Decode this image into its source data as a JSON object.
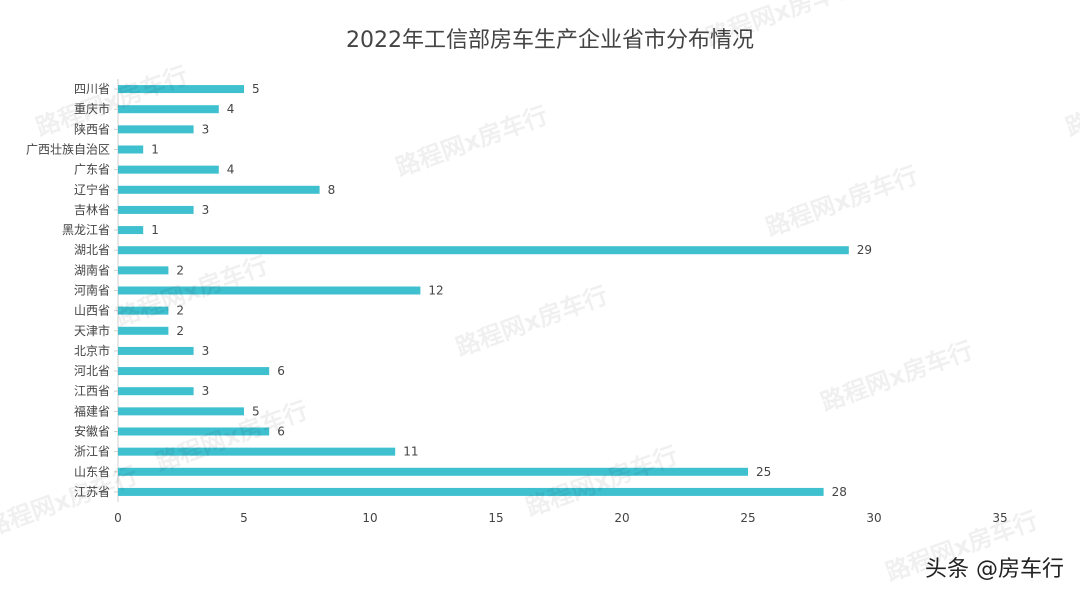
{
  "header": {
    "title": "2022年工信部房车生产企业省市分布情况"
  },
  "footer": {
    "credit": "头条 @房车行"
  },
  "watermark": {
    "text": "路程网x房车行"
  },
  "colors": {
    "bar": "#3ec0cf",
    "axis": "#cfcfcf",
    "label": "#444444"
  },
  "chart_data": {
    "type": "bar",
    "orientation": "horizontal",
    "title": "2022年工信部房车生产企业省市分布情况",
    "xlabel": "",
    "ylabel": "",
    "xlim": [
      0,
      35
    ],
    "xticks": [
      0,
      5,
      10,
      15,
      20,
      25,
      30,
      35
    ],
    "grid": false,
    "legend": "none",
    "categories": [
      "四川省",
      "重庆市",
      "陕西省",
      "广西壮族自治区",
      "广东省",
      "辽宁省",
      "吉林省",
      "黑龙江省",
      "湖北省",
      "湖南省",
      "河南省",
      "山西省",
      "天津市",
      "北京市",
      "河北省",
      "江西省",
      "福建省",
      "安徽省",
      "浙江省",
      "山东省",
      "江苏省"
    ],
    "values": [
      5,
      4,
      3,
      1,
      4,
      8,
      3,
      1,
      29,
      2,
      12,
      2,
      2,
      3,
      6,
      3,
      5,
      6,
      11,
      25,
      28
    ]
  }
}
